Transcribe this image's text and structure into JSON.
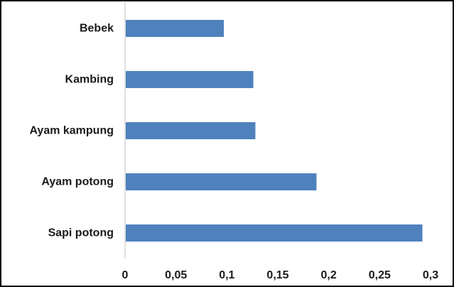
{
  "chart_data": {
    "type": "bar",
    "orientation": "horizontal",
    "categories": [
      "Bebek",
      "Kambing",
      "Ayam kampung",
      "Ayam potong",
      "Sapi potong"
    ],
    "values": [
      0.097,
      0.126,
      0.128,
      0.188,
      0.292
    ],
    "xlim": [
      0,
      0.3
    ],
    "xticks": [
      0,
      0.05,
      0.1,
      0.15,
      0.2,
      0.25,
      0.3
    ],
    "xtick_labels": [
      "0",
      "0,05",
      "0,1",
      "0,15",
      "0,2",
      "0,25",
      "0,3"
    ],
    "title": "",
    "xlabel": "",
    "ylabel": "",
    "grid": false,
    "legend": "none",
    "bar_color": "#4f81bd",
    "axis_color": "#bfbfbf"
  }
}
